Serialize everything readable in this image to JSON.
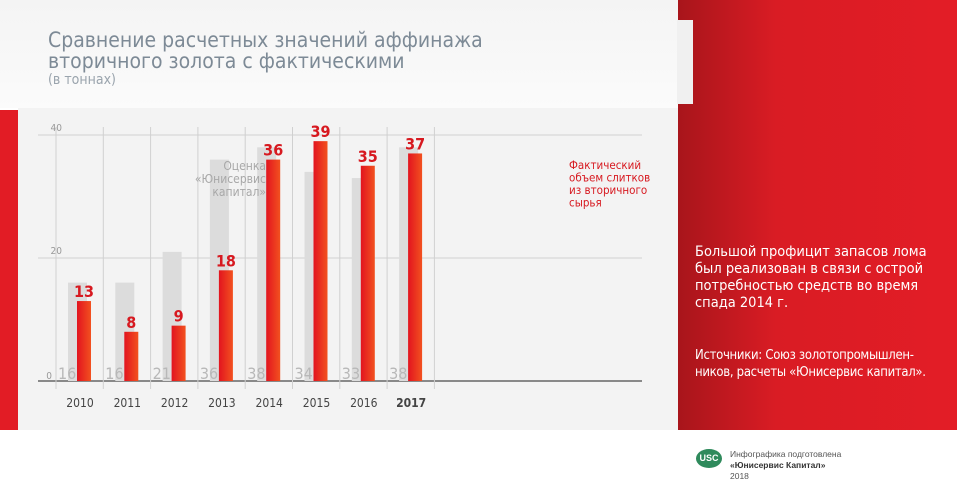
{
  "header": {
    "title_line1": "Сравнение расчетных значений аффинажа",
    "title_line2": "вторичного золота с фактическими",
    "subtitle": "(в тоннах)"
  },
  "chart_data": {
    "type": "bar",
    "categories": [
      "2010",
      "2011",
      "2012",
      "2013",
      "2014",
      "2015",
      "2016",
      "2017"
    ],
    "series": [
      {
        "name": "Оценка «Юнисервис капитал»",
        "values": [
          16,
          16,
          21,
          36,
          38,
          34,
          33,
          38
        ],
        "color": "#dcdcdc",
        "label_color": "#b8b8b8"
      },
      {
        "name": "Фактический объем слитков из вторичного сырья",
        "values": [
          13,
          8,
          9,
          18,
          36,
          39,
          35,
          37
        ],
        "color": "#e8202a",
        "label_color": "#d71920"
      }
    ],
    "yticks": [
      0,
      20,
      40
    ],
    "ylim": [
      0,
      40
    ],
    "grid": true,
    "estimate_label": [
      "Оценка",
      "«Юнисервис",
      "капитал»"
    ],
    "actual_label": [
      "Фактический",
      "объем слитков",
      "из вторичного",
      "сырья"
    ]
  },
  "side": {
    "text": "Большой профицит запасов лома был реализован в связи с острой потребностью средств во время спада 2014 г.",
    "sources": "Источники: Союз золотопромышлен-ников, расчеты «Юнисервис капитал»."
  },
  "footer": {
    "logo": "USC",
    "line1": "Инфографика подготовлена",
    "line2": "«Юнисервис Капитал»",
    "line3": "2018"
  }
}
